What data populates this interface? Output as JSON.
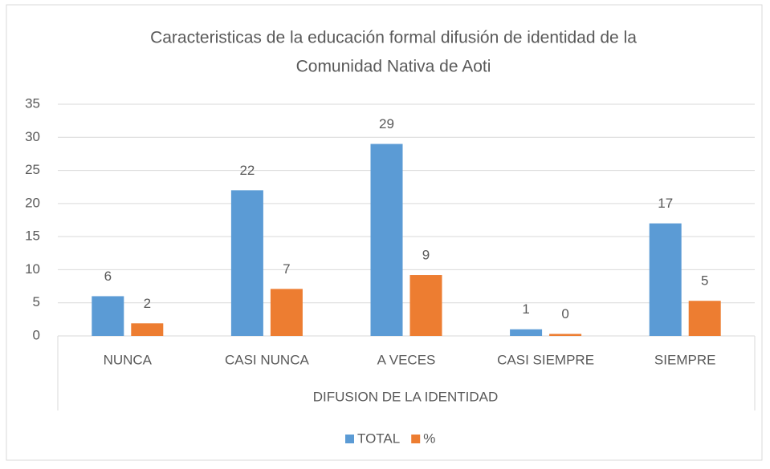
{
  "chart_data": {
    "type": "bar",
    "title": [
      "Caracteristicas  de la educación  formal difusión de identidad de la",
      "Comunidad Nativa  de Aoti"
    ],
    "x_label": "DIFUSION DE LA IDENTIDAD",
    "categories": [
      "NUNCA",
      "CASI NUNCA",
      "A VECES",
      "CASI SIEMPRE",
      "SIEMPRE"
    ],
    "series": [
      {
        "name": "TOTAL",
        "color": "#5b9bd5",
        "values": [
          6,
          22,
          29,
          1,
          17
        ]
      },
      {
        "name": "%",
        "color": "#ed7d31",
        "values": [
          1.9,
          7.1,
          9.2,
          0.3,
          5.3
        ],
        "value_labels": [
          "2",
          "7",
          "9",
          "0",
          "5"
        ]
      }
    ],
    "ylim": [
      0,
      35
    ],
    "yticks": [
      0,
      5,
      10,
      15,
      20,
      25,
      30,
      35
    ],
    "grid": true,
    "legend": "bottom"
  }
}
